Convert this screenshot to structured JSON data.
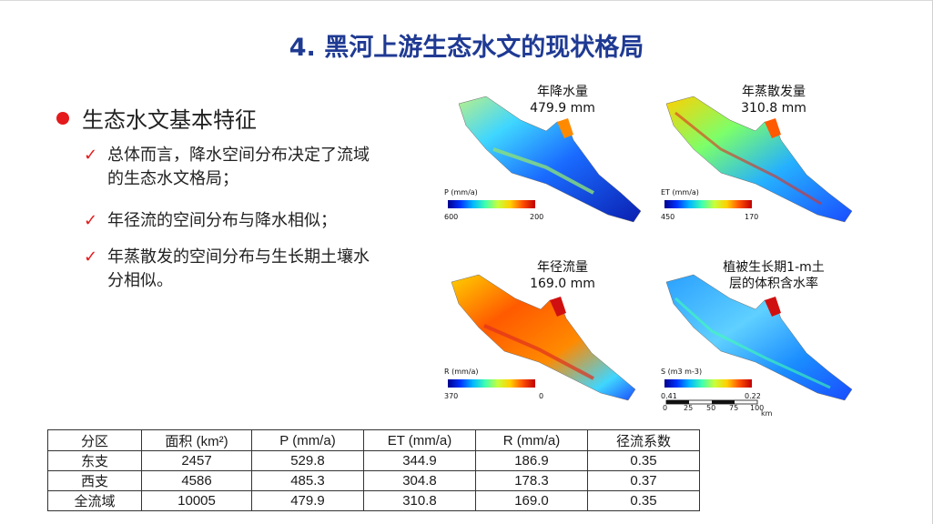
{
  "slide": {
    "title": "4. 黑河上游生态水文的现状格局",
    "bullet": "生态水文基本特征",
    "items": [
      {
        "check": "✓",
        "text": "总体而言，降水空间分布决定了流域的生态水文格局；"
      },
      {
        "check": "✓",
        "text": "年径流的空间分布与降水相似；"
      },
      {
        "check": "✓",
        "text": "年蒸散发的空间分布与生长期土壤水分相似。"
      }
    ]
  },
  "maps": [
    {
      "title": "年降水量",
      "subtitle": "479.9 mm",
      "cbar_label": "P (mm/a)",
      "cbar_min": "600",
      "cbar_max": "200"
    },
    {
      "title": "年蒸散发量",
      "subtitle": "310.8 mm",
      "cbar_label": "ET (mm/a)",
      "cbar_min": "450",
      "cbar_max": "170"
    },
    {
      "title": "年径流量",
      "subtitle": "169.0 mm",
      "cbar_label": "R (mm/a)",
      "cbar_min": "370",
      "cbar_max": "0"
    },
    {
      "title": "植被生长期1-m土",
      "subtitle": "层的体积含水率",
      "cbar_label": "S (m3 m-3)",
      "cbar_min": "0.41",
      "cbar_max": "0.22"
    }
  ],
  "scale_bar": {
    "ticks": [
      "0",
      "25",
      "50",
      "75",
      "100"
    ],
    "unit": "km"
  },
  "table": {
    "headers": [
      "分区",
      "面积 (km²)",
      "P (mm/a)",
      "ET (mm/a)",
      "R (mm/a)",
      "径流系数"
    ],
    "rows": [
      [
        "东支",
        "2457",
        "529.8",
        "344.9",
        "186.9",
        "0.35"
      ],
      [
        "西支",
        "4586",
        "485.3",
        "304.8",
        "178.3",
        "0.37"
      ],
      [
        "全流域",
        "10005",
        "479.9",
        "310.8",
        "169.0",
        "0.35"
      ]
    ]
  },
  "colors": {
    "title": "#1f3a93",
    "accent": "#e41a1c"
  }
}
